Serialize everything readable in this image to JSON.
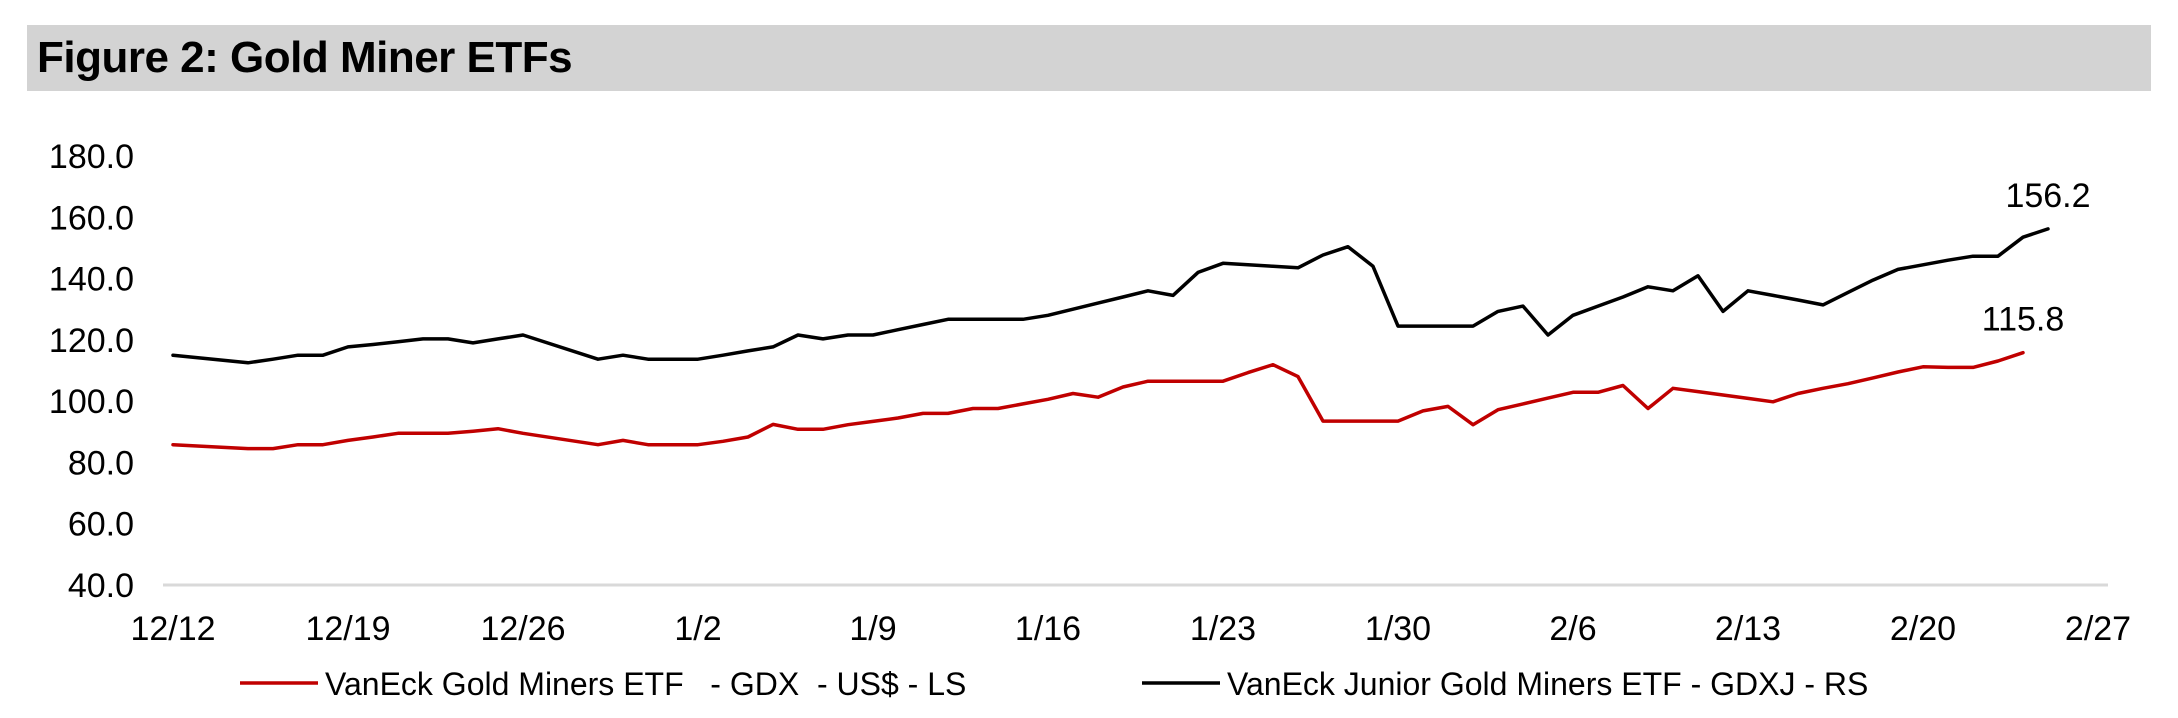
{
  "title": "Figure 2: Gold Miner ETFs",
  "chart_data": {
    "type": "line",
    "title": "Figure 2: Gold Miner ETFs",
    "xlabel": "",
    "ylabel": "",
    "ylim": [
      40,
      180
    ],
    "yticks": [
      "180.0",
      "160.0",
      "140.0",
      "120.0",
      "100.0",
      "80.0",
      "60.0",
      "40.0"
    ],
    "xticks": [
      {
        "label": "12/12",
        "day": 0
      },
      {
        "label": "12/19",
        "day": 7
      },
      {
        "label": "12/26",
        "day": 14
      },
      {
        "label": "1/2",
        "day": 21
      },
      {
        "label": "1/9",
        "day": 28
      },
      {
        "label": "1/16",
        "day": 35
      },
      {
        "label": "1/23",
        "day": 42
      },
      {
        "label": "1/30",
        "day": 49
      },
      {
        "label": "2/6",
        "day": 56
      },
      {
        "label": "2/13",
        "day": 63
      },
      {
        "label": "2/20",
        "day": 70
      },
      {
        "label": "2/27",
        "day": 77
      }
    ],
    "x_range": [
      0,
      77
    ],
    "grid": false,
    "legend_position": "bottom",
    "series": [
      {
        "name": "VanEck Gold Miners ETF   - GDX  - US$ - LS",
        "color": "#c00000",
        "end_label": "115.8",
        "points": [
          [
            0,
            85.8
          ],
          [
            3,
            84.5
          ],
          [
            4,
            84.5
          ],
          [
            5,
            85.8
          ],
          [
            6,
            85.8
          ],
          [
            7,
            87.2
          ],
          [
            8,
            88.3
          ],
          [
            9,
            89.5
          ],
          [
            10,
            89.5
          ],
          [
            11,
            89.5
          ],
          [
            12,
            90.2
          ],
          [
            13,
            91
          ],
          [
            14,
            89.5
          ],
          [
            17,
            85.8
          ],
          [
            18,
            87.2
          ],
          [
            19,
            85.8
          ],
          [
            20,
            85.8
          ],
          [
            21,
            85.8
          ],
          [
            22,
            86.9
          ],
          [
            23,
            88.3
          ],
          [
            24,
            92.4
          ],
          [
            25,
            90.8
          ],
          [
            26,
            90.8
          ],
          [
            27,
            92.3
          ],
          [
            28,
            93.4
          ],
          [
            29,
            94.5
          ],
          [
            30,
            96
          ],
          [
            31,
            96
          ],
          [
            32,
            97.6
          ],
          [
            33,
            97.6
          ],
          [
            34,
            99.1
          ],
          [
            35,
            100.6
          ],
          [
            36,
            102.5
          ],
          [
            37,
            101.3
          ],
          [
            38,
            104.6
          ],
          [
            39,
            106.5
          ],
          [
            40,
            106.5
          ],
          [
            41,
            106.5
          ],
          [
            42,
            106.5
          ],
          [
            43,
            109.3
          ],
          [
            44,
            111.9
          ],
          [
            45,
            108
          ],
          [
            46,
            93.5
          ],
          [
            47,
            93.5
          ],
          [
            48,
            93.5
          ],
          [
            49,
            93.5
          ],
          [
            50,
            96.8
          ],
          [
            51,
            98.3
          ],
          [
            52,
            92.3
          ],
          [
            53,
            97.2
          ],
          [
            54,
            99.1
          ],
          [
            55,
            101
          ],
          [
            56,
            102.9
          ],
          [
            57,
            102.9
          ],
          [
            58,
            105.1
          ],
          [
            59,
            97.6
          ],
          [
            60,
            104.2
          ],
          [
            61,
            103.1
          ],
          [
            62,
            102
          ],
          [
            63,
            100.9
          ],
          [
            64,
            99.8
          ],
          [
            65,
            102.5
          ],
          [
            66,
            104.2
          ],
          [
            67,
            105.7
          ],
          [
            68,
            107.6
          ],
          [
            69,
            109.5
          ],
          [
            70,
            111.2
          ],
          [
            71,
            111
          ],
          [
            72,
            111
          ],
          [
            73,
            113.1
          ],
          [
            74,
            115.8
          ]
        ]
      },
      {
        "name": "VanEck Junior Gold Miners ETF - GDXJ - RS",
        "color": "#000000",
        "end_label": "156.2",
        "points": [
          [
            0,
            115
          ],
          [
            3,
            112.5
          ],
          [
            4,
            113.7
          ],
          [
            5,
            115
          ],
          [
            6,
            115
          ],
          [
            7,
            117.7
          ],
          [
            8,
            118.5
          ],
          [
            9,
            119.4
          ],
          [
            10,
            120.3
          ],
          [
            11,
            120.3
          ],
          [
            12,
            119
          ],
          [
            13,
            120.3
          ],
          [
            14,
            121.6
          ],
          [
            17,
            113.7
          ],
          [
            18,
            115
          ],
          [
            19,
            113.7
          ],
          [
            20,
            113.7
          ],
          [
            21,
            113.7
          ],
          [
            22,
            115
          ],
          [
            23,
            116.4
          ],
          [
            24,
            117.7
          ],
          [
            25,
            121.6
          ],
          [
            26,
            120.3
          ],
          [
            27,
            121.6
          ],
          [
            28,
            121.6
          ],
          [
            29,
            123.3
          ],
          [
            30,
            125
          ],
          [
            31,
            126.7
          ],
          [
            32,
            126.7
          ],
          [
            33,
            126.7
          ],
          [
            34,
            126.7
          ],
          [
            35,
            128
          ],
          [
            36,
            130
          ],
          [
            37,
            132
          ],
          [
            38,
            134
          ],
          [
            39,
            136
          ],
          [
            40,
            134.5
          ],
          [
            41,
            142
          ],
          [
            42,
            145
          ],
          [
            43,
            144.5
          ],
          [
            44,
            144
          ],
          [
            45,
            143.5
          ],
          [
            46,
            147.7
          ],
          [
            47,
            150.4
          ],
          [
            48,
            144
          ],
          [
            49,
            124.5
          ],
          [
            50,
            124.5
          ],
          [
            51,
            124.5
          ],
          [
            52,
            124.5
          ],
          [
            53,
            129.3
          ],
          [
            54,
            131
          ],
          [
            55,
            121.6
          ],
          [
            56,
            128
          ],
          [
            57,
            131
          ],
          [
            58,
            134
          ],
          [
            59,
            137.3
          ],
          [
            60,
            136
          ],
          [
            61,
            140.9
          ],
          [
            62,
            129.3
          ],
          [
            63,
            136
          ],
          [
            64,
            134.5
          ],
          [
            65,
            133
          ],
          [
            66,
            131.4
          ],
          [
            67,
            135.5
          ],
          [
            68,
            139.5
          ],
          [
            69,
            143
          ],
          [
            70,
            144.5
          ],
          [
            71,
            146
          ],
          [
            72,
            147.3
          ],
          [
            73,
            147.3
          ],
          [
            74,
            153.5
          ],
          [
            75,
            156.2
          ]
        ]
      }
    ]
  }
}
